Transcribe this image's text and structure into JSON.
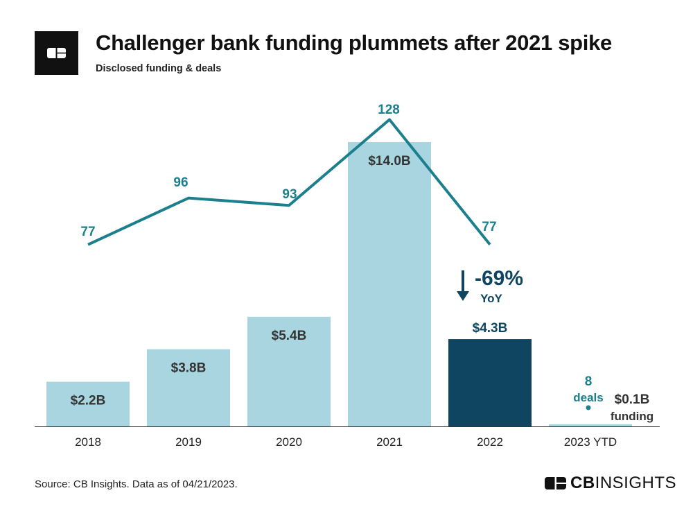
{
  "header": {
    "title": "Challenger bank funding plummets after 2021 spike",
    "subtitle": "Disclosed funding & deals"
  },
  "footer": {
    "source": "Source: CB Insights. Data as of 04/21/2023.",
    "brand_bold": "CB",
    "brand_light": "INSIGHTS"
  },
  "colors": {
    "bar": "#a8d5df",
    "bar_highlight": "#0f4560",
    "line": "#1b7f8e",
    "deal_label": "#1b7f8e",
    "bar_label": "#333333",
    "bar_label_highlight": "#0f4560",
    "axis": "#333333"
  },
  "chart_data": {
    "type": "bar",
    "categories": [
      "2018",
      "2019",
      "2020",
      "2021",
      "2022",
      "2023 YTD"
    ],
    "series": [
      {
        "kind": "bar",
        "values": [
          2.2,
          3.8,
          5.4,
          14.0,
          4.3,
          0.1
        ],
        "labels": [
          "$2.2B",
          "$3.8B",
          "$5.4B",
          "$14.0B",
          "$4.3B",
          "$0.1B"
        ],
        "highlight_index": 4
      },
      {
        "kind": "line",
        "values": [
          77,
          96,
          93,
          128,
          77,
          8
        ],
        "labels": [
          "77",
          "96",
          "93",
          "128",
          "77",
          "8"
        ]
      }
    ],
    "bar_ylim": [
      0,
      14.0
    ],
    "line_ylim": [
      0,
      128
    ],
    "annotations": {
      "yoy_change": "-69%",
      "yoy_label": "YoY",
      "deals_word": "deals",
      "funding_word": "funding"
    }
  }
}
